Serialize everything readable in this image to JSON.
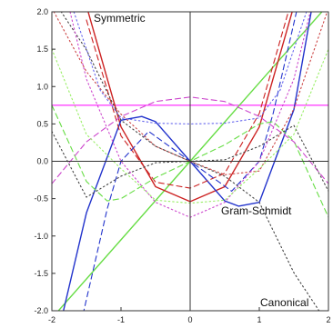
{
  "chart_data": {
    "type": "line",
    "title": "",
    "xlabel": "",
    "ylabel": "",
    "xlim": [
      -2,
      2
    ],
    "ylim": [
      -2,
      2
    ],
    "x_ticks": [
      -2,
      -1,
      0,
      1,
      2
    ],
    "y_ticks": [
      -2.0,
      -1.5,
      -1.0,
      -0.5,
      0.0,
      0.5,
      1.0,
      1.5,
      2.0
    ],
    "x_tick_labels": [
      "-2",
      "-1",
      "0",
      "1",
      "2"
    ],
    "y_tick_labels": [
      "-2.0",
      "-1.5",
      "-1.0",
      "-0.5",
      "0.0",
      "0.5",
      "1.0",
      "1.5",
      "2.0"
    ],
    "grid": false,
    "annotations": [
      {
        "text": "Symmetric",
        "position": "top-left"
      },
      {
        "text": "Gram-Schmidt",
        "position": "lower-right-center"
      },
      {
        "text": "Canonical",
        "position": "bottom-right"
      }
    ],
    "series": [
      {
        "color": "#ff44ff",
        "style": "solid",
        "x": [
          -2,
          -1,
          0,
          1,
          2
        ],
        "y": [
          0.75,
          0.75,
          0.75,
          0.75,
          0.75
        ]
      },
      {
        "color": "#66dd44",
        "style": "solid",
        "x": [
          -2,
          -1,
          0,
          1,
          2
        ],
        "y": [
          -2.1,
          -1.05,
          0.0,
          1.05,
          2.1
        ]
      },
      {
        "color": "#cc2222",
        "style": "solid",
        "x": [
          -1.5,
          -1.0,
          -0.5,
          0.0,
          0.5,
          1.0,
          1.5
        ],
        "y": [
          2.08,
          0.46,
          -0.34,
          -0.54,
          -0.34,
          0.46,
          2.08
        ]
      },
      {
        "color": "#2233cc",
        "style": "solid",
        "x": [
          -1.85,
          -1.5,
          -1.0,
          -0.7,
          -0.5,
          0.0,
          0.5,
          0.7,
          1.0,
          1.5,
          1.8
        ],
        "y": [
          -2.07,
          -0.69,
          0.55,
          0.6,
          0.53,
          0.0,
          -0.53,
          -0.6,
          -0.55,
          0.69,
          2.26
        ]
      },
      {
        "color": "#cc2222",
        "style": "dashed",
        "x": [
          -1.5,
          -1.0,
          -0.5,
          0.0,
          0.5,
          1.0,
          1.5
        ],
        "y": [
          1.89,
          0.34,
          -0.28,
          -0.36,
          -0.16,
          0.64,
          2.26
        ]
      },
      {
        "color": "#2233cc",
        "style": "dashed",
        "x": [
          -1.55,
          -1.2,
          -1.0,
          -0.6,
          0.0,
          0.6,
          1.0,
          1.2,
          1.55
        ],
        "y": [
          -2.05,
          -0.64,
          0.0,
          0.4,
          0.0,
          -0.4,
          0.0,
          0.64,
          2.05
        ]
      },
      {
        "color": "#66dd44",
        "style": "dashed",
        "x": [
          -2.0,
          -1.5,
          -1.2,
          -1.0,
          -0.5,
          0.0,
          0.5,
          1.0,
          1.2,
          1.5,
          2.0
        ],
        "y": [
          0.75,
          -0.27,
          -0.53,
          -0.5,
          -0.22,
          0.0,
          0.22,
          0.5,
          0.53,
          0.27,
          -0.75
        ]
      },
      {
        "color": "#cc44cc",
        "style": "dashed",
        "x": [
          -2.0,
          -1.5,
          -1.0,
          -0.5,
          0.0,
          0.5,
          1.0,
          1.5,
          2.0
        ],
        "y": [
          -0.3,
          0.26,
          0.6,
          0.8,
          0.86,
          0.8,
          0.6,
          0.26,
          -0.3
        ]
      },
      {
        "color": "#444444",
        "style": "dotted",
        "x": [
          -2.0,
          -1.5,
          -1.0,
          -0.5,
          0.0,
          0.5,
          1.0,
          1.5,
          2.0
        ],
        "y": [
          0.4,
          -0.48,
          -0.2,
          -0.02,
          0.0,
          0.02,
          0.2,
          0.48,
          -0.4
        ]
      },
      {
        "color": "#cc4444",
        "style": "dotted",
        "x": [
          -2.0,
          -1.5,
          -1.0,
          -0.5,
          0.0,
          0.5,
          1.0,
          1.5,
          2.0
        ],
        "y": [
          2.05,
          1.2,
          0.63,
          0.2,
          0.0,
          -0.18,
          -0.13,
          0.7,
          2.05
        ]
      },
      {
        "color": "#444444",
        "style": "dotted",
        "x": [
          -1.9,
          -1.5,
          -1.0,
          -0.5,
          0.0,
          0.5,
          1.0,
          1.5,
          1.9
        ],
        "y": [
          2.05,
          1.49,
          0.55,
          0.2,
          0.0,
          -0.2,
          -0.55,
          -1.49,
          -2.05
        ]
      },
      {
        "color": "#6666ee",
        "style": "dotted",
        "x": [
          -1.7,
          -1.3,
          -1.0,
          -0.5,
          0.0,
          0.5,
          1.0,
          1.3,
          1.7
        ],
        "y": [
          2.05,
          0.95,
          0.58,
          0.51,
          0.5,
          0.51,
          0.58,
          0.95,
          2.05
        ]
      },
      {
        "color": "#cc44cc",
        "style": "dotted",
        "x": [
          -1.75,
          -1.5,
          -1.0,
          -0.5,
          0.0,
          0.5,
          1.0,
          1.5,
          1.75
        ],
        "y": [
          2.05,
          1.1,
          0.0,
          -0.55,
          -0.75,
          -0.55,
          0.0,
          1.1,
          2.05
        ]
      },
      {
        "color": "#99ee66",
        "style": "dotted",
        "x": [
          -2.0,
          -1.5,
          -1.0,
          -0.5,
          0.0,
          0.5,
          1.0,
          1.5,
          2.0
        ],
        "y": [
          1.5,
          0.36,
          -0.1,
          -0.52,
          -0.56,
          -0.52,
          -0.1,
          0.36,
          1.5
        ]
      }
    ]
  }
}
